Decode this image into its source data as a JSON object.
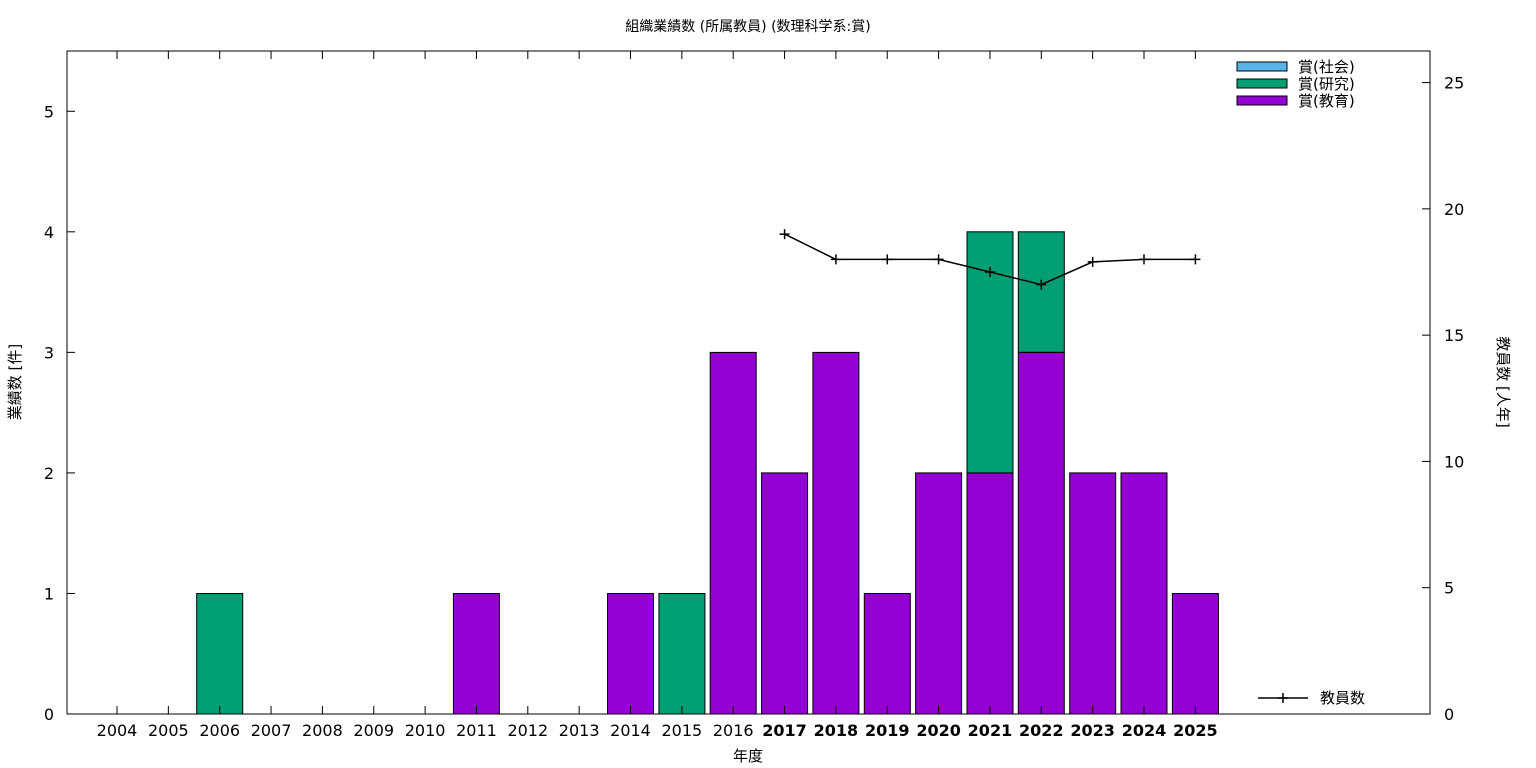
{
  "chart_data": {
    "type": "bar",
    "stacked": true,
    "title": "組織業績数 (所属教員) (数理科学系:賞)",
    "xlabel": "年度",
    "ylabel": "業績数 [件]",
    "y2label": "教員数 [人年]",
    "categories": [
      "2004",
      "2005",
      "2006",
      "2007",
      "2008",
      "2009",
      "2010",
      "2011",
      "2012",
      "2013",
      "2014",
      "2015",
      "2016",
      "2017",
      "2018",
      "2019",
      "2020",
      "2021",
      "2022",
      "2023",
      "2024",
      "2025"
    ],
    "ylim": [
      0,
      5.5
    ],
    "yticks": [
      0,
      1,
      2,
      3,
      4,
      5
    ],
    "y2lim": [
      0,
      26.25
    ],
    "y2ticks": [
      0,
      5,
      10,
      15,
      20,
      25
    ],
    "grid": false,
    "legend_position": "top-right",
    "series": [
      {
        "name": "賞(社会)",
        "color": "#56b4e9",
        "values": [
          0,
          0,
          0,
          0,
          0,
          0,
          0,
          0,
          0,
          0,
          0,
          0,
          0,
          0,
          0,
          0,
          0,
          0,
          0,
          0,
          0,
          0
        ]
      },
      {
        "name": "賞(研究)",
        "color": "#009e73",
        "values": [
          0,
          0,
          1,
          0,
          0,
          0,
          0,
          0,
          0,
          0,
          0,
          1,
          0,
          0,
          0,
          0,
          0,
          2,
          1,
          0,
          0,
          0
        ]
      },
      {
        "name": "賞(教育)",
        "color": "#9400d3",
        "values": [
          0,
          0,
          0,
          0,
          0,
          0,
          0,
          1,
          0,
          0,
          1,
          0,
          3,
          2,
          3,
          1,
          2,
          2,
          3,
          2,
          2,
          1
        ]
      }
    ],
    "stack_order": [
      "賞(教育)",
      "賞(研究)",
      "賞(社会)"
    ],
    "line_series": {
      "name": "教員数",
      "color": "#000000",
      "axis": "right",
      "legend_position": "bottom-right",
      "x": [
        "2017",
        "2018",
        "2019",
        "2020",
        "2021",
        "2022",
        "2023",
        "2024",
        "2025"
      ],
      "values": [
        19,
        18,
        18,
        18,
        17.5,
        17,
        17.9,
        18,
        18
      ]
    }
  }
}
